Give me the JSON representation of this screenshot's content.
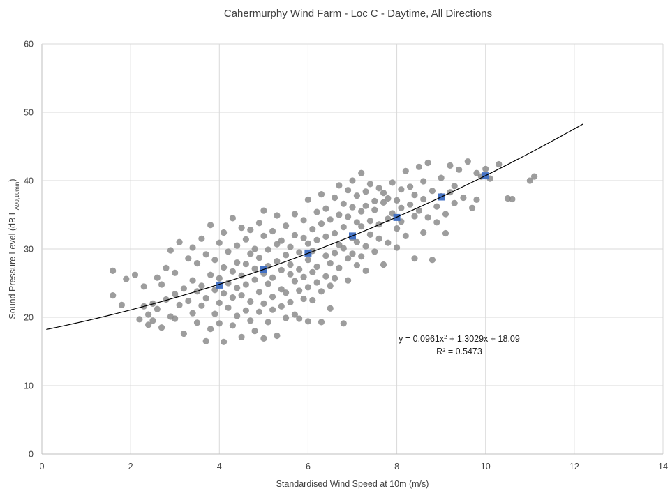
{
  "chart_data": {
    "type": "scatter",
    "title": "Cahermurphy Wind Farm - Loc C - Daytime, All Directions",
    "xlabel": "Standardised Wind Speed at 10m (m/s)",
    "ylabel_parts": {
      "main": "Sound Pressure Level (dB L",
      "subscript": "A90,10min",
      "close": ")"
    },
    "xlim": [
      0,
      14
    ],
    "ylim": [
      0,
      60
    ],
    "x_ticks": [
      "0",
      "2",
      "4",
      "6",
      "8",
      "10",
      "12",
      "14"
    ],
    "y_ticks": [
      "0",
      "10",
      "20",
      "30",
      "40",
      "50",
      "60"
    ],
    "grid": true,
    "colors": {
      "scatter": "#8c8c8c",
      "derived": "#4472c4",
      "trendline": "#000000"
    },
    "trendline": {
      "type": "polynomial",
      "coefficients": {
        "a": 0.0961,
        "b": 1.3029,
        "c": 18.09
      },
      "x_range": [
        0.1,
        12.2
      ],
      "equation_parts": {
        "pre": "y = 0.0961x",
        "sup": "2",
        "post": " + 1.3029x + 18.09"
      },
      "r_squared": "R² = 0.5473"
    },
    "derived_points": [
      {
        "x": 4,
        "y": 24.7
      },
      {
        "x": 5,
        "y": 27.0
      },
      {
        "x": 6,
        "y": 29.4
      },
      {
        "x": 7,
        "y": 31.9
      },
      {
        "x": 8,
        "y": 34.6
      },
      {
        "x": 9,
        "y": 37.6
      },
      {
        "x": 10,
        "y": 40.7
      }
    ],
    "scatter_points": [
      [
        1.6,
        26.8
      ],
      [
        1.6,
        23.2
      ],
      [
        1.8,
        21.8
      ],
      [
        1.9,
        25.6
      ],
      [
        2.1,
        26.2
      ],
      [
        2.2,
        19.7
      ],
      [
        2.3,
        24.5
      ],
      [
        2.3,
        21.6
      ],
      [
        2.4,
        20.4
      ],
      [
        2.4,
        18.9
      ],
      [
        2.5,
        22.0
      ],
      [
        2.5,
        19.5
      ],
      [
        2.6,
        21.2
      ],
      [
        2.6,
        25.8
      ],
      [
        2.7,
        24.8
      ],
      [
        2.7,
        18.5
      ],
      [
        2.8,
        27.2
      ],
      [
        2.8,
        22.6
      ],
      [
        2.9,
        20.1
      ],
      [
        2.9,
        29.8
      ],
      [
        3.0,
        23.4
      ],
      [
        3.0,
        19.8
      ],
      [
        3.0,
        26.5
      ],
      [
        3.1,
        31.0
      ],
      [
        3.1,
        21.8
      ],
      [
        3.2,
        17.6
      ],
      [
        3.2,
        24.2
      ],
      [
        3.3,
        28.6
      ],
      [
        3.3,
        22.4
      ],
      [
        3.4,
        20.6
      ],
      [
        3.4,
        30.2
      ],
      [
        3.4,
        25.4
      ],
      [
        3.5,
        23.8
      ],
      [
        3.5,
        19.2
      ],
      [
        3.5,
        27.9
      ],
      [
        3.6,
        21.7
      ],
      [
        3.6,
        31.5
      ],
      [
        3.6,
        24.6
      ],
      [
        3.7,
        29.2
      ],
      [
        3.7,
        16.5
      ],
      [
        3.7,
        22.8
      ],
      [
        3.8,
        26.2
      ],
      [
        3.8,
        18.3
      ],
      [
        3.8,
        33.5
      ],
      [
        3.9,
        24.0
      ],
      [
        3.9,
        20.5
      ],
      [
        3.9,
        28.4
      ],
      [
        4.0,
        22.1
      ],
      [
        4.0,
        30.9
      ],
      [
        4.0,
        25.7
      ],
      [
        4.0,
        19.1
      ],
      [
        4.1,
        27.3
      ],
      [
        4.1,
        23.5
      ],
      [
        4.1,
        32.4
      ],
      [
        4.1,
        16.4
      ],
      [
        4.2,
        21.4
      ],
      [
        4.2,
        29.6
      ],
      [
        4.2,
        25.0
      ],
      [
        4.3,
        18.8
      ],
      [
        4.3,
        34.5
      ],
      [
        4.3,
        26.7
      ],
      [
        4.3,
        22.9
      ],
      [
        4.4,
        30.5
      ],
      [
        4.4,
        24.3
      ],
      [
        4.4,
        20.2
      ],
      [
        4.4,
        28.0
      ],
      [
        4.5,
        17.1
      ],
      [
        4.5,
        33.1
      ],
      [
        4.5,
        23.2
      ],
      [
        4.5,
        26.1
      ],
      [
        4.6,
        21.0
      ],
      [
        4.6,
        31.4
      ],
      [
        4.6,
        27.8
      ],
      [
        4.6,
        24.8
      ],
      [
        4.7,
        19.5
      ],
      [
        4.7,
        29.3
      ],
      [
        4.7,
        32.8
      ],
      [
        4.7,
        22.3
      ],
      [
        4.8,
        25.5
      ],
      [
        4.8,
        18.0
      ],
      [
        4.8,
        30.0
      ],
      [
        4.8,
        27.1
      ],
      [
        4.9,
        23.7
      ],
      [
        4.9,
        33.8
      ],
      [
        4.9,
        20.8
      ],
      [
        4.9,
        28.7
      ],
      [
        5.0,
        16.9
      ],
      [
        5.0,
        26.4
      ],
      [
        5.0,
        31.9
      ],
      [
        5.0,
        22.0
      ],
      [
        5.0,
        35.6
      ],
      [
        5.1,
        24.9
      ],
      [
        5.1,
        29.9
      ],
      [
        5.1,
        19.3
      ],
      [
        5.1,
        27.5
      ],
      [
        5.2,
        23.0
      ],
      [
        5.2,
        32.6
      ],
      [
        5.2,
        21.1
      ],
      [
        5.2,
        25.8
      ],
      [
        5.3,
        30.7
      ],
      [
        5.3,
        17.3
      ],
      [
        5.3,
        28.2
      ],
      [
        5.3,
        34.9
      ],
      [
        5.4,
        24.1
      ],
      [
        5.4,
        21.6
      ],
      [
        5.4,
        26.9
      ],
      [
        5.4,
        31.2
      ],
      [
        5.5,
        19.9
      ],
      [
        5.5,
        29.1
      ],
      [
        5.5,
        23.6
      ],
      [
        5.5,
        33.4
      ],
      [
        5.6,
        26.3
      ],
      [
        5.6,
        22.2
      ],
      [
        5.6,
        30.3
      ],
      [
        5.6,
        27.7
      ],
      [
        5.7,
        20.4
      ],
      [
        5.7,
        32.0
      ],
      [
        5.7,
        25.3
      ],
      [
        5.7,
        35.1
      ],
      [
        5.8,
        23.9
      ],
      [
        5.8,
        29.5
      ],
      [
        5.8,
        19.8
      ],
      [
        5.8,
        27.0
      ],
      [
        5.9,
        31.6
      ],
      [
        5.9,
        25.9
      ],
      [
        5.9,
        22.7
      ],
      [
        5.9,
        34.2
      ],
      [
        6.0,
        28.4
      ],
      [
        6.0,
        24.4
      ],
      [
        6.0,
        30.8
      ],
      [
        6.0,
        19.4
      ],
      [
        6.0,
        37.2
      ],
      [
        6.1,
        26.6
      ],
      [
        6.1,
        32.9
      ],
      [
        6.1,
        22.5
      ],
      [
        6.1,
        29.7
      ],
      [
        6.2,
        35.4
      ],
      [
        6.2,
        25.1
      ],
      [
        6.2,
        31.3
      ],
      [
        6.2,
        27.4
      ],
      [
        6.3,
        19.3
      ],
      [
        6.3,
        33.7
      ],
      [
        6.3,
        23.8
      ],
      [
        6.3,
        38.0
      ],
      [
        6.4,
        29.0
      ],
      [
        6.4,
        26.0
      ],
      [
        6.4,
        35.9
      ],
      [
        6.4,
        31.8
      ],
      [
        6.5,
        24.6
      ],
      [
        6.5,
        34.3
      ],
      [
        6.5,
        27.9
      ],
      [
        6.5,
        21.3
      ],
      [
        6.6,
        32.3
      ],
      [
        6.6,
        37.5
      ],
      [
        6.6,
        29.4
      ],
      [
        6.6,
        25.7
      ],
      [
        6.7,
        35.0
      ],
      [
        6.7,
        30.6
      ],
      [
        6.7,
        39.3
      ],
      [
        6.7,
        27.2
      ],
      [
        6.8,
        33.2
      ],
      [
        6.8,
        19.1
      ],
      [
        6.8,
        36.6
      ],
      [
        6.8,
        30.1
      ],
      [
        6.9,
        28.6
      ],
      [
        6.9,
        38.6
      ],
      [
        6.9,
        34.7
      ],
      [
        6.9,
        25.4
      ],
      [
        7.0,
        31.6
      ],
      [
        7.0,
        36.1
      ],
      [
        7.0,
        29.3
      ],
      [
        7.0,
        40.0
      ],
      [
        7.1,
        33.9
      ],
      [
        7.1,
        27.6
      ],
      [
        7.1,
        37.8
      ],
      [
        7.1,
        31.0
      ],
      [
        7.2,
        35.5
      ],
      [
        7.2,
        41.1
      ],
      [
        7.2,
        28.9
      ],
      [
        7.2,
        33.3
      ],
      [
        7.3,
        38.4
      ],
      [
        7.3,
        30.4
      ],
      [
        7.3,
        36.3
      ],
      [
        7.3,
        26.8
      ],
      [
        7.4,
        34.1
      ],
      [
        7.4,
        39.5
      ],
      [
        7.4,
        32.1
      ],
      [
        7.5,
        37.0
      ],
      [
        7.5,
        29.6
      ],
      [
        7.5,
        35.7
      ],
      [
        7.6,
        38.9
      ],
      [
        7.6,
        31.5
      ],
      [
        7.6,
        33.6
      ],
      [
        7.7,
        36.8
      ],
      [
        7.7,
        27.7
      ],
      [
        7.7,
        38.2
      ],
      [
        7.8,
        34.4
      ],
      [
        7.8,
        30.9
      ],
      [
        7.8,
        37.4
      ],
      [
        7.9,
        35.2
      ],
      [
        7.9,
        39.7
      ],
      [
        8.0,
        33.0
      ],
      [
        8.0,
        37.1
      ],
      [
        8.0,
        30.2
      ],
      [
        8.1,
        36.0
      ],
      [
        8.1,
        38.7
      ],
      [
        8.1,
        34.0
      ],
      [
        8.2,
        41.4
      ],
      [
        8.2,
        31.9
      ],
      [
        8.3,
        36.5
      ],
      [
        8.3,
        39.1
      ],
      [
        8.4,
        34.8
      ],
      [
        8.4,
        28.6
      ],
      [
        8.4,
        37.9
      ],
      [
        8.5,
        42.0
      ],
      [
        8.5,
        35.6
      ],
      [
        8.6,
        32.4
      ],
      [
        8.6,
        39.9
      ],
      [
        8.6,
        37.3
      ],
      [
        8.7,
        42.6
      ],
      [
        8.7,
        34.6
      ],
      [
        8.8,
        28.4
      ],
      [
        8.8,
        38.5
      ],
      [
        8.9,
        36.2
      ],
      [
        8.9,
        33.9
      ],
      [
        9.0,
        40.4
      ],
      [
        9.0,
        37.7
      ],
      [
        9.1,
        35.1
      ],
      [
        9.1,
        32.3
      ],
      [
        9.2,
        38.3
      ],
      [
        9.2,
        42.2
      ],
      [
        9.3,
        36.7
      ],
      [
        9.3,
        39.2
      ],
      [
        9.4,
        41.6
      ],
      [
        9.5,
        37.5
      ],
      [
        9.6,
        42.8
      ],
      [
        9.7,
        36.0
      ],
      [
        9.8,
        37.2
      ],
      [
        9.8,
        41.1
      ],
      [
        9.9,
        40.6
      ],
      [
        10.0,
        41.7
      ],
      [
        10.1,
        40.3
      ],
      [
        10.3,
        42.4
      ],
      [
        10.5,
        37.4
      ],
      [
        10.6,
        37.3
      ],
      [
        11.0,
        40.0
      ],
      [
        11.1,
        40.6
      ]
    ]
  }
}
